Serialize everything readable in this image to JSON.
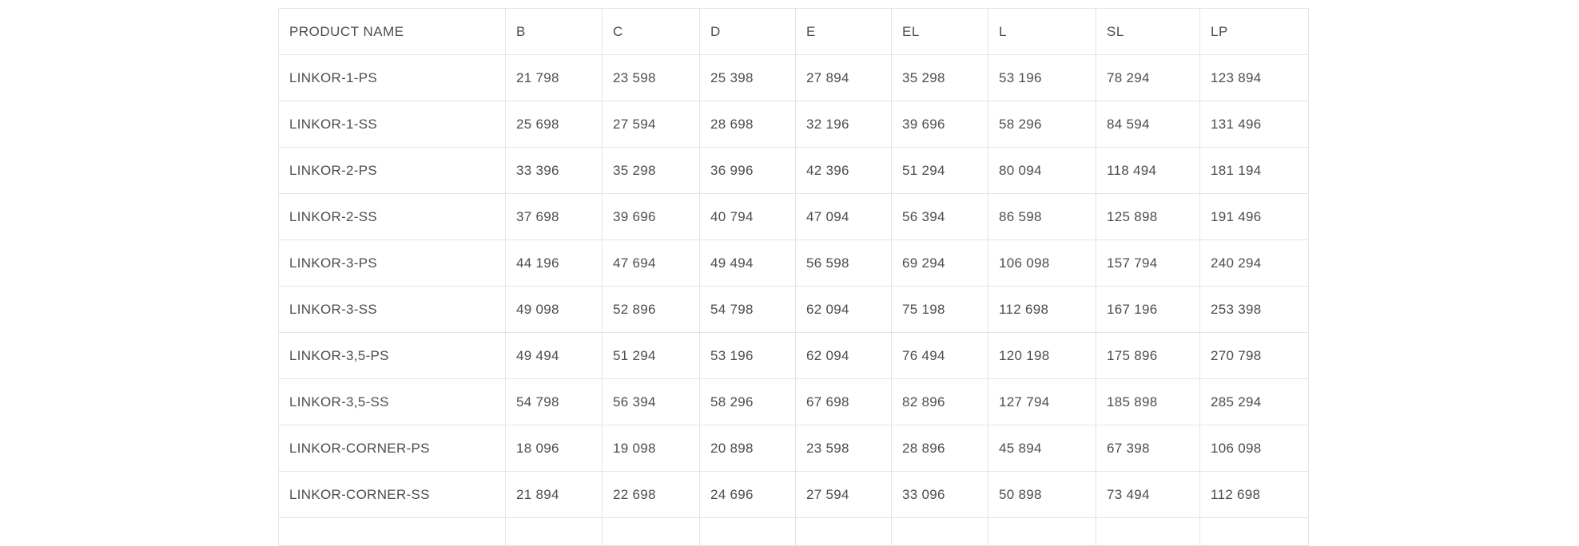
{
  "price_table": {
    "columns": [
      {
        "key": "product-name",
        "label": "PRODUCT NAME"
      },
      {
        "key": "b",
        "label": "B"
      },
      {
        "key": "c",
        "label": "C"
      },
      {
        "key": "d",
        "label": "D"
      },
      {
        "key": "e",
        "label": "E"
      },
      {
        "key": "el",
        "label": "EL"
      },
      {
        "key": "l",
        "label": "L"
      },
      {
        "key": "sl",
        "label": "SL"
      },
      {
        "key": "lp",
        "label": "LP"
      }
    ],
    "rows": [
      {
        "name": "LINKOR-1-PS",
        "values": [
          "21 798",
          "23 598",
          "25 398",
          "27 894",
          "35 298",
          "53 196",
          "78 294",
          "123 894"
        ]
      },
      {
        "name": "LINKOR-1-SS",
        "values": [
          "25 698",
          "27 594",
          "28 698",
          "32 196",
          "39 696",
          "58 296",
          "84 594",
          "131 496"
        ]
      },
      {
        "name": "LINKOR-2-PS",
        "values": [
          "33 396",
          "35 298",
          "36 996",
          "42 396",
          "51 294",
          "80 094",
          "118 494",
          "181 194"
        ]
      },
      {
        "name": "LINKOR-2-SS",
        "values": [
          "37 698",
          "39 696",
          "40 794",
          "47 094",
          "56 394",
          "86 598",
          "125 898",
          "191 496"
        ]
      },
      {
        "name": "LINKOR-3-PS",
        "values": [
          "44 196",
          "47 694",
          "49 494",
          "56 598",
          "69 294",
          "106 098",
          "157 794",
          "240 294"
        ]
      },
      {
        "name": "LINKOR-3-SS",
        "values": [
          "49 098",
          "52 896",
          "54 798",
          "62 094",
          "75 198",
          "112 698",
          "167 196",
          "253 398"
        ]
      },
      {
        "name": "LINKOR-3,5-PS",
        "values": [
          "49 494",
          "51 294",
          "53 196",
          "62 094",
          "76 494",
          "120 198",
          "175 896",
          "270 798"
        ]
      },
      {
        "name": "LINKOR-3,5-SS",
        "values": [
          "54 798",
          "56 394",
          "58 296",
          "67 698",
          "82 896",
          "127 794",
          "185 898",
          "285 294"
        ]
      },
      {
        "name": "LINKOR-CORNER-PS",
        "values": [
          "18 096",
          "19 098",
          "20 898",
          "23 598",
          "28 896",
          "45 894",
          "67 398",
          "106 098"
        ]
      },
      {
        "name": "LINKOR-CORNER-SS",
        "values": [
          "21 894",
          "22 698",
          "24 696",
          "27 594",
          "33 096",
          "50 898",
          "73 494",
          "112 698"
        ]
      }
    ],
    "colors": {
      "border": "#e4e4e4",
      "text": "#4d4d4d",
      "background": "#ffffff"
    }
  }
}
